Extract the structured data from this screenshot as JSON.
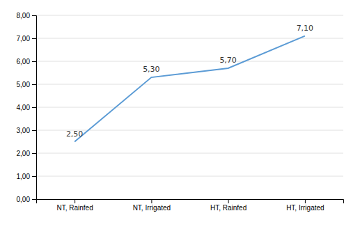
{
  "chart_data": {
    "type": "line",
    "categories": [
      "NT, Rainfed",
      "NT, Irrigated",
      "HT, Rainfed",
      "HT, Irrigated"
    ],
    "values": [
      2.5,
      5.3,
      5.7,
      7.1
    ],
    "value_labels": [
      "2,50",
      "5,30",
      "5,70",
      "7,10"
    ],
    "data_labels": true,
    "color": "#5B9BD5",
    "ylim": [
      0,
      8.0
    ],
    "yticks": [
      {
        "value": 0.0,
        "label": "0,00"
      },
      {
        "value": 1.0,
        "label": "1,00"
      },
      {
        "value": 2.0,
        "label": "2,00"
      },
      {
        "value": 3.0,
        "label": "3,00"
      },
      {
        "value": 4.0,
        "label": "4,00"
      },
      {
        "value": 5.0,
        "label": "5,00"
      },
      {
        "value": 6.0,
        "label": "6,00"
      },
      {
        "value": 7.0,
        "label": "7,00"
      },
      {
        "value": 8.0,
        "label": "8,00"
      }
    ],
    "grid": true
  }
}
